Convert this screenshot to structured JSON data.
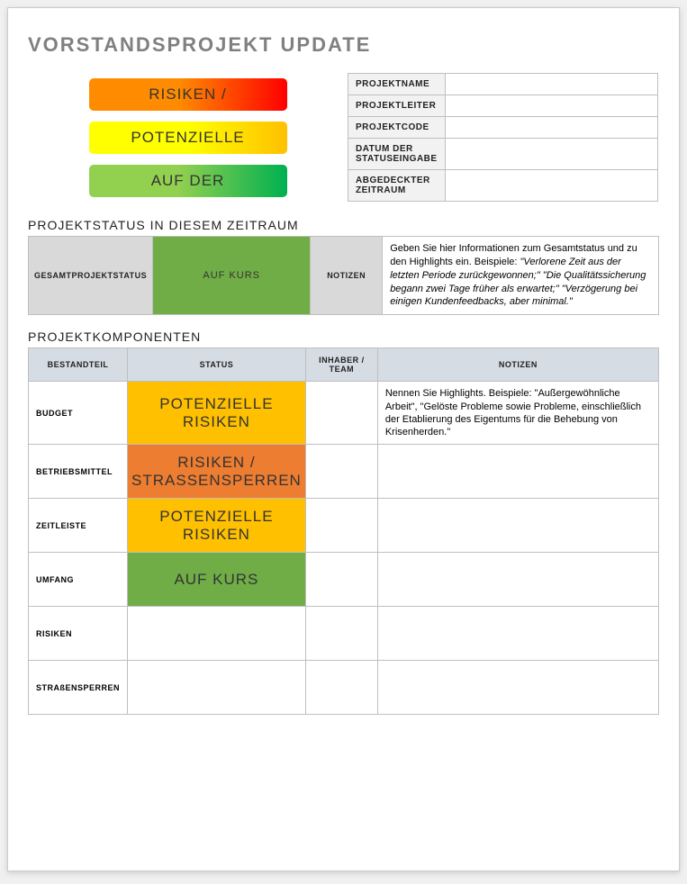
{
  "title": "VORSTANDSPROJEKT UPDATE",
  "legend": {
    "red": {
      "label": "RISIKEN /",
      "gradient_from": "#ff8c00",
      "gradient_to": "#ff0000"
    },
    "yellow": {
      "label": "POTENZIELLE",
      "gradient_from": "#ffff00",
      "gradient_to": "#ffc000"
    },
    "green": {
      "label": "AUF DER",
      "gradient_from": "#92d050",
      "gradient_to": "#00b050"
    }
  },
  "meta_labels": {
    "project_name": "PROJEKTNAME",
    "project_lead": "PROJEKTLEITER",
    "project_code": "PROJEKTCODE",
    "status_date": "DATUM DER STATUSEINGABE",
    "period_covered": "ABGEDECKTER ZEITRAUM"
  },
  "meta_values": {
    "project_name": "",
    "project_lead": "",
    "project_code": "",
    "status_date": "",
    "period_covered": ""
  },
  "section_period": {
    "heading": "PROJEKTSTATUS IN DIESEM ZEITRAUM",
    "overall_label": "GESAMTPROJEKTSTATUS",
    "overall_status": "AUF KURS",
    "overall_status_color": "#70ad47",
    "notes_label": "NOTIZEN",
    "notes_intro": "Geben Sie hier Informationen zum Gesamtstatus und zu den Highlights ein. Beispiele: ",
    "notes_ex1": "\"Verlorene Zeit aus der letzten Periode zurückgewonnen;\" \"Die Qualitätssicherung begann zwei Tage früher als erwartet;\" \"Verzögerung bei einigen Kundenfeedbacks, aber minimal.\""
  },
  "components": {
    "heading": "PROJEKTKOMPONENTEN",
    "columns": {
      "component": "BESTANDTEIL",
      "status": "STATUS",
      "owner": "INHABER / TEAM",
      "notes": "NOTIZEN"
    },
    "status_colors": {
      "AUF KURS": "#70ad47",
      "POTENZIELLE RISIKEN": "#ffc000",
      "RISIKEN / STRASSENSPERREN": "#ed7d31"
    },
    "rows": [
      {
        "label": "BUDGET",
        "status": "POTENZIELLE RISIKEN",
        "status_class": "bg-yellow",
        "owner": "",
        "notes": "Nennen Sie Highlights. Beispiele: \"Außergewöhnliche Arbeit\", \"Gelöste Probleme sowie Probleme, einschließlich der Etablierung des Eigentums für die Behebung von Krisenherden.\""
      },
      {
        "label": "BETRIEBSMITTEL",
        "status": "RISIKEN / STRASSENSPERREN",
        "status_class": "bg-orange",
        "owner": "",
        "notes": ""
      },
      {
        "label": "ZEITLEISTE",
        "status": "POTENZIELLE RISIKEN",
        "status_class": "bg-yellow",
        "owner": "",
        "notes": ""
      },
      {
        "label": "UMFANG",
        "status": "AUF KURS",
        "status_class": "bg-green",
        "owner": "",
        "notes": ""
      },
      {
        "label": "RISIKEN",
        "status": "",
        "status_class": "",
        "owner": "",
        "notes": ""
      },
      {
        "label": "STRAßENSPERREN",
        "status": "",
        "status_class": "",
        "owner": "",
        "notes": ""
      }
    ]
  },
  "colors": {
    "page_bg": "#ffffff",
    "border": "#bfbfbf",
    "header_gray": "#d9d9d9",
    "header_blue": "#d6dce4",
    "title_gray": "#808080"
  },
  "typography": {
    "title_fontsize": 22,
    "section_fontsize": 14,
    "body_fontsize": 11,
    "label_fontsize": 9,
    "font_family": "Century Gothic"
  }
}
